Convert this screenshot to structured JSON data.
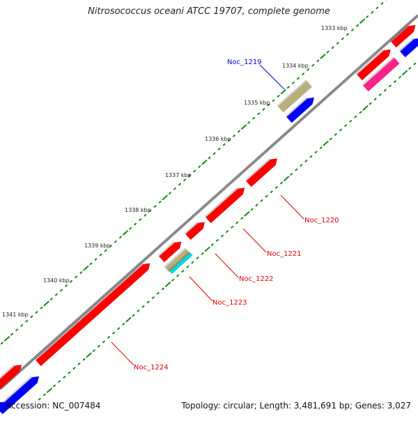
{
  "title": "Nitrosococcus oceani ATCC 19707, complete genome",
  "footer": {
    "accession": "Accession: NC_007484",
    "summary": "Topology: circular; Length: 3,481,691 bp; Genes: 3,027"
  },
  "ticks": [
    {
      "label": "1333 kbp"
    },
    {
      "label": "1334 kbp"
    },
    {
      "label": "1335 kbp"
    },
    {
      "label": "1336 kbp"
    },
    {
      "label": "1337 kbp"
    },
    {
      "label": "1338 kbp"
    },
    {
      "label": "1339 kbp"
    },
    {
      "label": "1340 kbp"
    },
    {
      "label": "1341 kbp"
    }
  ],
  "gene_labels": [
    {
      "text": "Noc_1219",
      "color": "#0000cc"
    },
    {
      "text": "Noc_1220",
      "color": "#dd0000"
    },
    {
      "text": "Noc_1221",
      "color": "#dd0000"
    },
    {
      "text": "Noc_1222",
      "color": "#dd0000"
    },
    {
      "text": "Noc_1223",
      "color": "#dd0000"
    },
    {
      "text": "Noc_1224",
      "color": "#dd0000"
    }
  ],
  "colors": {
    "backbone": "#8a8a8a",
    "cds": "#ff0000",
    "cds_other": "#0000ff",
    "trna": "#b8b07a",
    "misc": "#00d8e8",
    "rrna": "#ff2288",
    "tick": "#118811",
    "label_line_red": "#dd0000",
    "label_line_blue": "#0000cc"
  }
}
